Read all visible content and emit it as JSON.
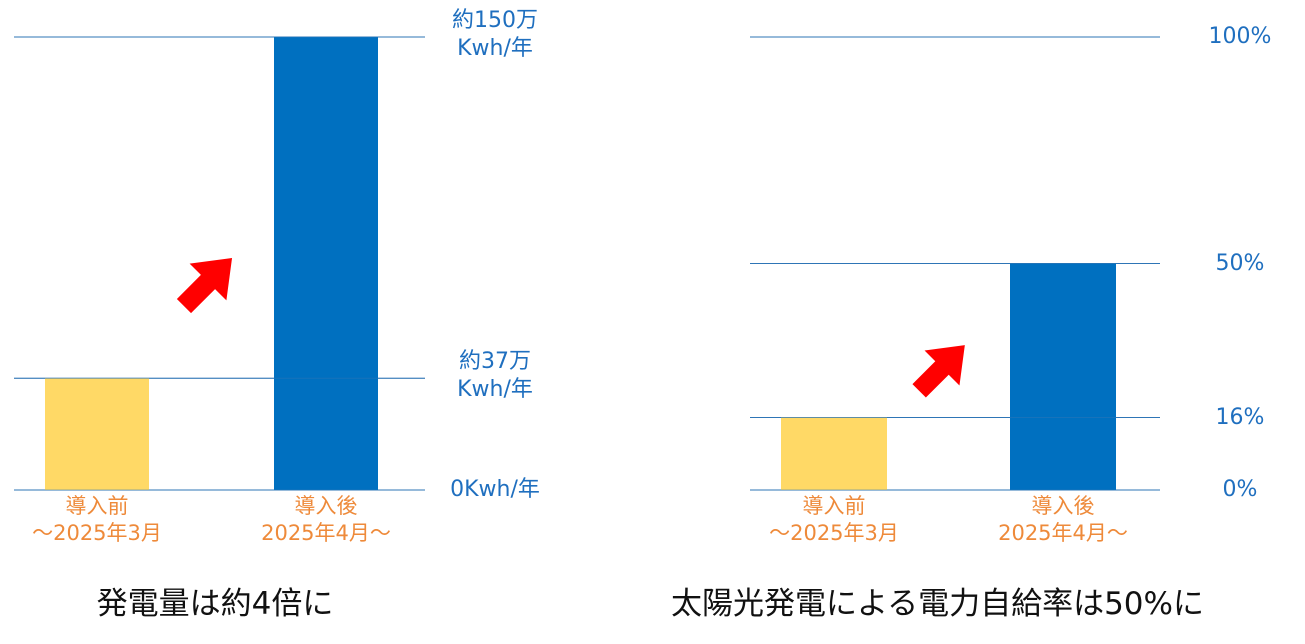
{
  "chart_data": [
    {
      "id": "generation",
      "type": "bar",
      "categories": [
        {
          "line1": "導入前",
          "line2": "～2025年3月"
        },
        {
          "line1": "導入後",
          "line2": "2025年4月～"
        }
      ],
      "values": [
        37,
        150
      ],
      "ylim": [
        0,
        150
      ],
      "yticks": [
        {
          "value": 150,
          "line1": "約150万",
          "line2": "Kwh/年"
        },
        {
          "value": 37,
          "line1": "約37万",
          "line2": "Kwh/年"
        },
        {
          "value": 0,
          "line1": "0Kwh/年",
          "line2": ""
        }
      ],
      "caption": "発電量は約4倍に",
      "colors": {
        "before": "#ffd966",
        "after": "#0070c0",
        "gridline": "#2e75b6",
        "arrow": "#ff0000"
      }
    },
    {
      "id": "self-sufficiency",
      "type": "bar",
      "categories": [
        {
          "line1": "導入前",
          "line2": "～2025年3月"
        },
        {
          "line1": "導入後",
          "line2": "2025年4月～"
        }
      ],
      "values": [
        16,
        50
      ],
      "ylim": [
        0,
        100
      ],
      "yticks": [
        {
          "value": 100,
          "line1": "100%",
          "line2": ""
        },
        {
          "value": 50,
          "line1": "50%",
          "line2": ""
        },
        {
          "value": 16,
          "line1": "16%",
          "line2": ""
        },
        {
          "value": 0,
          "line1": "0%",
          "line2": ""
        }
      ],
      "caption": "太陽光発電による電力自給率は50%に",
      "colors": {
        "before": "#ffd966",
        "after": "#0070c0",
        "gridline": "#2e75b6",
        "arrow": "#ff0000"
      }
    }
  ]
}
